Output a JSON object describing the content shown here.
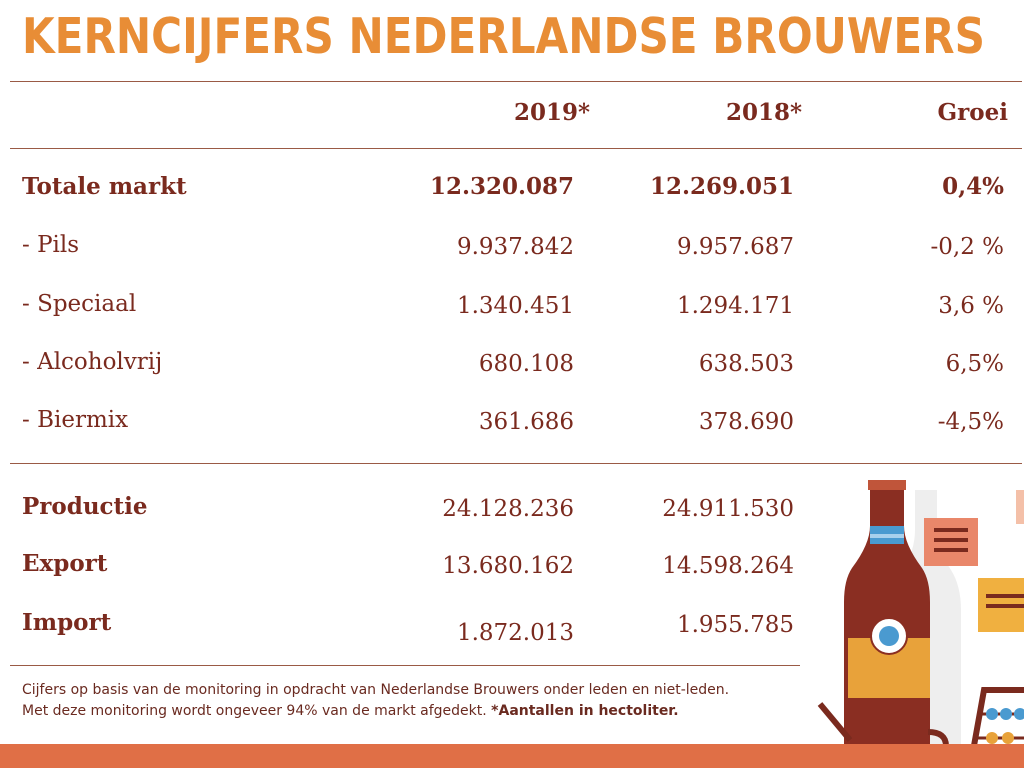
{
  "title": "KERNCIJFERS NEDERLANDSE BROUWERS",
  "columns": {
    "y2019": "2019*",
    "y2018": "2018*",
    "growth": "Groei"
  },
  "market_rows": [
    {
      "label": "Totale markt",
      "y2019": "12.320.087",
      "y2018": "12.269.051",
      "growth": "0,4%"
    },
    {
      "label": "- Pils",
      "y2019": "9.937.842",
      "y2018": "9.957.687",
      "growth": "-0,2 %"
    },
    {
      "label": "- Speciaal",
      "y2019": "1.340.451",
      "y2018": "1.294.171",
      "growth": "3,6 %"
    },
    {
      "label": "- Alcoholvrij",
      "y2019": "680.108",
      "y2018": "638.503",
      "growth": "6,5%"
    },
    {
      "label": "- Biermix",
      "y2019": "361.686",
      "y2018": "378.690",
      "growth": "-4,5%"
    }
  ],
  "trade_rows": [
    {
      "label": "Productie",
      "y2019": "24.128.236",
      "y2018": "24.911.530"
    },
    {
      "label": "Export",
      "y2019": "13.680.162",
      "y2018": "14.598.264"
    },
    {
      "label": "Import",
      "y2019": "1.872.013",
      "y2018": "1.955.785"
    }
  ],
  "note": {
    "line1": "Cijfers op basis van de monitoring in opdracht van Nederlandse Brouwers onder leden en niet-leden.",
    "line2": "Met deze monitoring wordt ongeveer 94% van de markt afgedekt. ",
    "line2_bold": "*Aantallen in hectoliter."
  },
  "colors": {
    "title": "#e88d36",
    "text": "#7a2a1e",
    "footer_bar": "#e06f46",
    "bottle": "#8a2e22",
    "label_band": "#e8a23a",
    "neck_band": "#4a9ad0"
  },
  "icons": [
    "beer-bottle-icon",
    "note-card-icon",
    "abacus-icon"
  ]
}
